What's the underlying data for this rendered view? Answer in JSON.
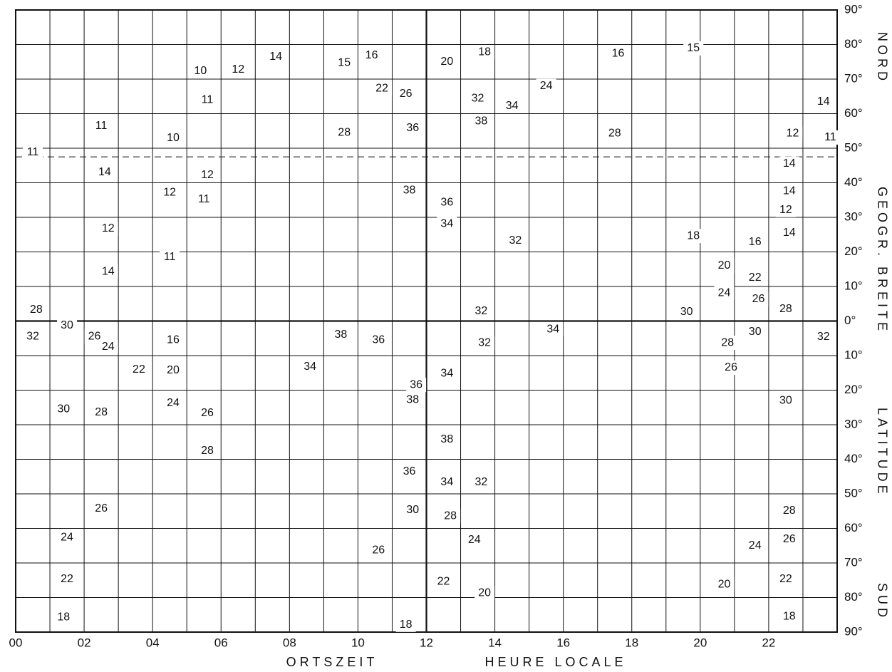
{
  "chart_data": {
    "type": "contour",
    "x_label": "ORTSZEIT",
    "x_label_2": "HEURE LOCALE",
    "y_labels_right": [
      "NORD",
      "GEOGR. BREITE",
      "LATITUDE",
      "SUD"
    ],
    "xlim": [
      0,
      24
    ],
    "xticks": [
      {
        "value": 0,
        "label": "00"
      },
      {
        "value": 2,
        "label": "02"
      },
      {
        "value": 4,
        "label": "04"
      },
      {
        "value": 6,
        "label": "06"
      },
      {
        "value": 8,
        "label": "08"
      },
      10,
      12,
      14,
      16,
      18,
      20,
      22
    ],
    "ylim": [
      -90,
      90
    ],
    "yticks": [
      {
        "value": 90,
        "label": "90°"
      },
      {
        "value": 80,
        "label": "80°"
      },
      {
        "value": 70,
        "label": "70°"
      },
      {
        "value": 60,
        "label": "60°"
      },
      {
        "value": 50,
        "label": "50°"
      },
      {
        "value": 40,
        "label": "40°"
      },
      {
        "value": 30,
        "label": "30°"
      },
      {
        "value": 20,
        "label": "20°"
      },
      {
        "value": 10,
        "label": "10°"
      },
      {
        "value": 0,
        "label": "0°"
      },
      {
        "value": -10,
        "label": "10°"
      },
      {
        "value": -20,
        "label": "20°"
      },
      {
        "value": -30,
        "label": "30°"
      },
      {
        "value": -40,
        "label": "40°"
      },
      {
        "value": -50,
        "label": "50°"
      },
      {
        "value": -60,
        "label": "60°"
      },
      {
        "value": -70,
        "label": "70°"
      },
      {
        "value": -80,
        "label": "80°"
      },
      {
        "value": -90,
        "label": "90°"
      }
    ],
    "grid": true,
    "reference_latitude": 47.5,
    "x": [
      7.6,
      5.4,
      6.5,
      5.6,
      9.6,
      10.4,
      12.6,
      13.7,
      17.6,
      19.8,
      10.7,
      11.4,
      15.5,
      13.5,
      14.5,
      23.6,
      2.5,
      4.6,
      11.6,
      13.6,
      17.5,
      9.6,
      22.7,
      23.8,
      0.5,
      2.6,
      5.6,
      22.6,
      4.5,
      5.5,
      11.5,
      12.6,
      22.6,
      22.5,
      2.7,
      12.6,
      22.6,
      19.8,
      14.6,
      21.6,
      4.5,
      2.7,
      20.7,
      21.6,
      20.7,
      21.7,
      0.6,
      13.6,
      19.6,
      22.5,
      1.5,
      15.7,
      0.5,
      2.3,
      2.7,
      4.6,
      9.5,
      10.6,
      13.7,
      21.6,
      23.6,
      20.8,
      20.9,
      3.6,
      4.6,
      8.6,
      12.6,
      11.7,
      11.6,
      4.6,
      1.4,
      2.5,
      5.6,
      22.5,
      12.6,
      5.6,
      11.5,
      12.6,
      13.6,
      11.6,
      12.7,
      2.5,
      22.6,
      1.5,
      13.4,
      22.6,
      21.6,
      10.6,
      1.5,
      12.5,
      13.7,
      20.7,
      22.5,
      1.4,
      11.4,
      22.6
    ],
    "y": [
      76.4,
      72.3,
      72.7,
      64,
      74.7,
      76.8,
      75,
      77.8,
      77.4,
      78.9,
      67.3,
      65.7,
      68,
      64.4,
      62.2,
      63.4,
      56.4,
      52.9,
      55.8,
      57.8,
      54.3,
      54.5,
      54.3,
      53.1,
      48.8,
      43,
      42.2,
      45.5,
      37.2,
      35.2,
      37.8,
      34.3,
      37.6,
      32.1,
      26.7,
      28.1,
      25.5,
      24.6,
      23.2,
      22.8,
      18.5,
      14.3,
      16,
      12.5,
      8.1,
      6.3,
      3.2,
      2.8,
      2.6,
      3.4,
      -1.3,
      -2.4,
      -4.5,
      -4.5,
      -7.5,
      -5.5,
      -4,
      -5.5,
      -6.3,
      -3.2,
      -4.6,
      -6.3,
      -13.5,
      -14.1,
      -14.3,
      -13.3,
      -15.2,
      -18.5,
      -22.8,
      -23.8,
      -25.5,
      -26.5,
      -26.7,
      -23,
      -34.3,
      -37.6,
      -43.6,
      -46.7,
      -46.7,
      -54.7,
      -56.4,
      -54.3,
      -54.9,
      -62.6,
      -63.4,
      -63.2,
      -65,
      -66.3,
      -74.7,
      -75.4,
      -78.7,
      -76.2,
      -74.7,
      -85.7,
      -87.9,
      -85.5
    ],
    "values": [
      14,
      10,
      12,
      11,
      15,
      16,
      20,
      18,
      16,
      15,
      22,
      26,
      24,
      32,
      34,
      14,
      11,
      10,
      36,
      38,
      28,
      28,
      12,
      11,
      11,
      14,
      12,
      14,
      12,
      11,
      38,
      36,
      14,
      12,
      12,
      34,
      14,
      18,
      32,
      16,
      11,
      14,
      20,
      22,
      24,
      26,
      28,
      32,
      30,
      28,
      30,
      34,
      32,
      26,
      24,
      16,
      38,
      36,
      32,
      30,
      32,
      28,
      26,
      22,
      20,
      34,
      34,
      36,
      38,
      24,
      30,
      28,
      26,
      30,
      38,
      28,
      36,
      34,
      32,
      30,
      28,
      26,
      28,
      24,
      24,
      26,
      24,
      26,
      22,
      22,
      20,
      20,
      22,
      18,
      18,
      18
    ]
  }
}
